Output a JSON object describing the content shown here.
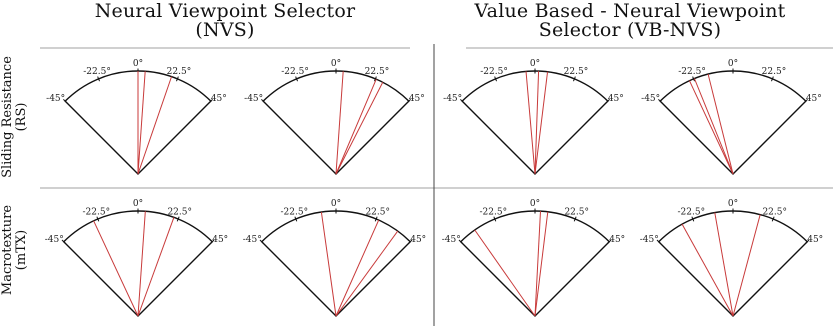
{
  "columns": [
    {
      "line1": "Neural Viewpoint Selector",
      "line2": "(NVS)"
    },
    {
      "line1": "Value Based - Neural Viewpoint",
      "line2": "Selector (VB-NVS)"
    }
  ],
  "rows": [
    {
      "line1": "Sliding Resistance",
      "line2": "(RS)"
    },
    {
      "line1": "Macrotexture",
      "line2": "(mTX)"
    }
  ],
  "tick_labels": {
    "-45": "-45°",
    "-22.5": "-22.5°",
    "0": "0°",
    "22.5": "22.5°",
    "45": "45°"
  },
  "colors": {
    "sector": "#111111",
    "viewpoint": "#c83a3a",
    "divider": "#a0a0a0",
    "axis": "#444444"
  },
  "panels": [
    {
      "row": "Sliding Resistance",
      "column": "Neural Viewpoint Selector",
      "viewpoint_angles_deg": [
        0,
        4,
        19
      ]
    },
    {
      "row": "Sliding Resistance",
      "column": "Neural Viewpoint Selector",
      "viewpoint_angles_deg": [
        4,
        23,
        27
      ]
    },
    {
      "row": "Sliding Resistance",
      "column": "Value Based - Neural Viewpoint Selector",
      "viewpoint_angles_deg": [
        -5,
        2,
        7
      ]
    },
    {
      "row": "Sliding Resistance",
      "column": "Value Based - Neural Viewpoint Selector",
      "viewpoint_angles_deg": [
        -25,
        -22,
        -14
      ]
    },
    {
      "row": "Macrotexture",
      "column": "Neural Viewpoint Selector",
      "viewpoint_angles_deg": [
        -25,
        4,
        20
      ]
    },
    {
      "row": "Macrotexture",
      "column": "Neural Viewpoint Selector",
      "viewpoint_angles_deg": [
        -8,
        24,
        36
      ]
    },
    {
      "row": "Macrotexture",
      "column": "Value Based - Neural Viewpoint Selector",
      "viewpoint_angles_deg": [
        -35,
        3,
        7
      ]
    },
    {
      "row": "Macrotexture",
      "column": "Value Based - Neural Viewpoint Selector",
      "viewpoint_angles_deg": [
        -29,
        -10,
        15
      ]
    }
  ]
}
